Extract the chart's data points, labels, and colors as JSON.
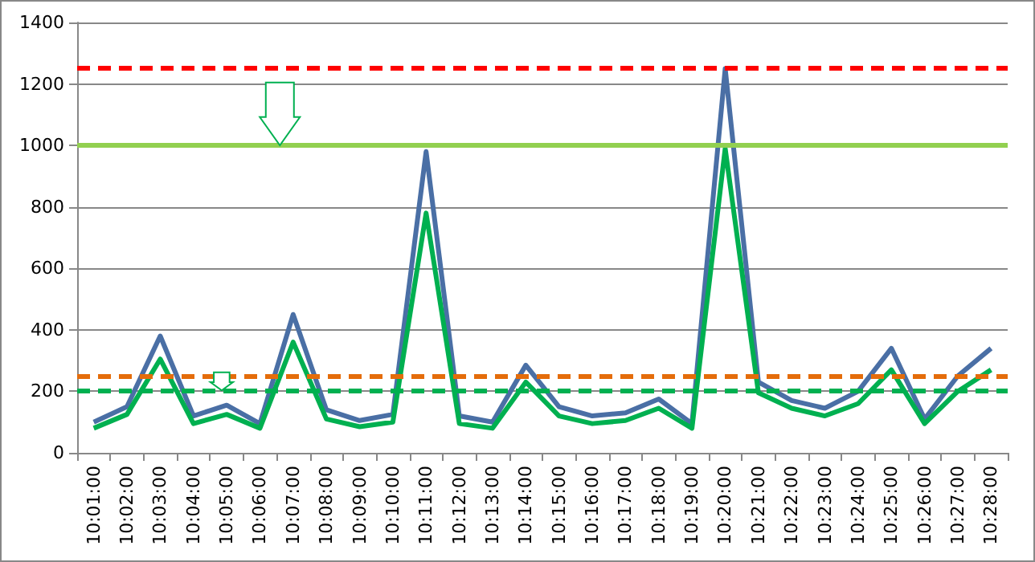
{
  "chart_data": {
    "type": "line",
    "categories": [
      "10:01:00",
      "10:02:00",
      "10:03:00",
      "10:04:00",
      "10:05:00",
      "10:06:00",
      "10:07:00",
      "10:08:00",
      "10:09:00",
      "10:10:00",
      "10:11:00",
      "10:12:00",
      "10:13:00",
      "10:14:00",
      "10:15:00",
      "10:16:00",
      "10:17:00",
      "10:18:00",
      "10:19:00",
      "10:20:00",
      "10:21:00",
      "10:22:00",
      "10:23:00",
      "10:24:00",
      "10:25:00",
      "10:26:00",
      "10:27:00",
      "10:28:00"
    ],
    "series": [
      {
        "color": "#4a6fa5",
        "values": [
          100,
          150,
          380,
          120,
          155,
          95,
          450,
          140,
          105,
          125,
          980,
          120,
          100,
          285,
          150,
          120,
          130,
          175,
          95,
          1250,
          230,
          170,
          145,
          200,
          340,
          110,
          250,
          340
        ]
      },
      {
        "color": "#00b050",
        "values": [
          80,
          125,
          305,
          95,
          125,
          80,
          360,
          110,
          85,
          100,
          780,
          95,
          80,
          230,
          120,
          95,
          105,
          145,
          80,
          990,
          195,
          145,
          120,
          160,
          270,
          95,
          200,
          270
        ]
      }
    ],
    "ylim": [
      0,
      1400
    ],
    "yticks": [
      0,
      200,
      400,
      600,
      800,
      1000,
      1200,
      1400
    ],
    "grid": "y",
    "marker": "none",
    "line_style": "solid",
    "ref_lines": [
      {
        "axis": "y",
        "value": 1250,
        "color": "#ff0000",
        "line_style": "dashed"
      },
      {
        "axis": "y",
        "value": 1000,
        "color": "#92d050",
        "line_style": "solid"
      },
      {
        "axis": "y",
        "value": 250,
        "color": "#e46c0a",
        "line_style": "dashed"
      },
      {
        "axis": "y",
        "value": 200,
        "color": "#00b050",
        "line_style": "dashed"
      }
    ]
  }
}
